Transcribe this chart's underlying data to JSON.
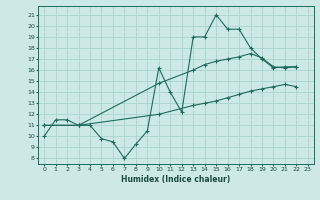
{
  "xlabel": "Humidex (Indice chaleur)",
  "ylabel": "",
  "bg_color": "#cce9e5",
  "line_color": "#1e6b5e",
  "grid_color": "#aad4ce",
  "xlim": [
    -0.5,
    23.5
  ],
  "ylim": [
    7.5,
    21.8
  ],
  "xticks": [
    0,
    1,
    2,
    3,
    4,
    5,
    6,
    7,
    8,
    9,
    10,
    11,
    12,
    13,
    14,
    15,
    16,
    17,
    18,
    19,
    20,
    21,
    22,
    23
  ],
  "yticks": [
    8,
    9,
    10,
    11,
    12,
    13,
    14,
    15,
    16,
    17,
    18,
    19,
    20,
    21
  ],
  "line1_x": [
    0,
    1,
    2,
    3,
    4,
    5,
    6,
    7,
    8,
    9,
    10,
    11,
    12,
    13,
    14,
    15,
    16,
    17,
    18,
    19,
    20,
    21,
    22
  ],
  "line1_y": [
    10,
    11.5,
    11.5,
    11,
    11,
    9.8,
    9.5,
    8,
    9.3,
    10.5,
    16.2,
    14,
    12.2,
    19,
    19,
    21,
    19.7,
    19.7,
    18,
    17,
    16.2,
    16.3,
    16.3
  ],
  "line2_x": [
    0,
    3,
    10,
    13,
    14,
    15,
    16,
    17,
    18,
    19,
    20,
    21,
    22
  ],
  "line2_y": [
    11,
    11,
    14.8,
    16,
    16.5,
    16.8,
    17,
    17.2,
    17.5,
    17.1,
    16.3,
    16.2,
    16.3
  ],
  "line3_x": [
    0,
    3,
    10,
    13,
    14,
    15,
    16,
    17,
    18,
    19,
    20,
    21,
    22
  ],
  "line3_y": [
    11,
    11,
    12.0,
    12.8,
    13.0,
    13.2,
    13.5,
    13.8,
    14.1,
    14.3,
    14.5,
    14.7,
    14.5
  ]
}
